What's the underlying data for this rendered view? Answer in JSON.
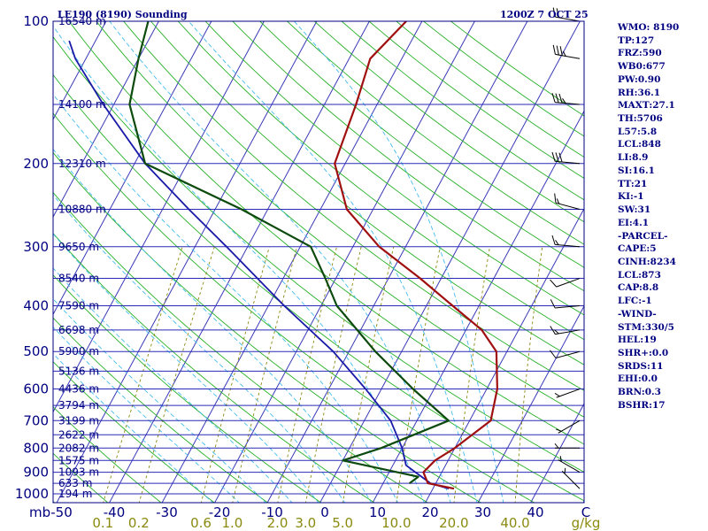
{
  "header": {
    "title": "LE190 (8190) Sounding",
    "time": "1200Z  7 OCT 25"
  },
  "indices": [
    "WMO: 8190",
    "TP:127",
    "FRZ:590",
    "WB0:677",
    "PW:0.90",
    "RH:36.1",
    "MAXT:27.1",
    "TH:5706",
    "L57:5.8",
    "LCL:848",
    "LI:8.9",
    "SI:16.1",
    "TT:21",
    "KI:-1",
    "SW:31",
    "EI:4.1",
    "-PARCEL-",
    "CAPE:5",
    "CINH:8234",
    "LCL:873",
    "CAP:8.8",
    "LFC:-1",
    "-WIND-",
    "STM:330/5",
    "HEL:19",
    "SHR+:0.0",
    "SRDS:11",
    "EHI:0.0",
    "BRN:0.3",
    "BSHR:17"
  ],
  "colors": {
    "isobar": "#2a2ab8",
    "isotherm": "#3a3ab8",
    "dry_adiabat": "#28b028",
    "moist_adiabat": "#44bbee",
    "mixing_ratio": "#8a8a10",
    "temperature": "#a01010",
    "dewpoint": "#0d4a0d",
    "parcel": "#1a1aa8",
    "wind_barb": "#000000",
    "text": "#000080"
  },
  "chart_data": {
    "type": "skew-t log-p",
    "title": "LE190 (8190) Sounding",
    "time": "1200Z  7 OCT 25",
    "xlabel": "C",
    "mixing_unit": "g/kg",
    "y_unit_label": "mb",
    "xlim": [
      -50,
      50
    ],
    "ylim": [
      1000,
      100
    ],
    "pressure_ticks": [
      100,
      200,
      300,
      400,
      500,
      600,
      700,
      800,
      900,
      1000
    ],
    "temperature_ticks": [
      -50,
      -40,
      -30,
      -20,
      -10,
      0,
      10,
      20,
      30,
      40
    ],
    "mixing_ratio_labels": [
      "0.1",
      "0.2",
      "0.6",
      "1.0",
      "2.0",
      "3.0",
      "5.0",
      "10.0",
      "20.0",
      "40.0"
    ],
    "mixing_ratio_values": [
      0.1,
      0.2,
      0.6,
      1.0,
      2.0,
      3.0,
      5.0,
      10.0,
      20.0,
      40.0
    ],
    "height_labels": [
      {
        "p": 100,
        "label": "16540 m"
      },
      {
        "p": 150,
        "label": "14100 m"
      },
      {
        "p": 200,
        "label": "12310 m"
      },
      {
        "p": 250,
        "label": "10880 m"
      },
      {
        "p": 300,
        "label": "9650 m"
      },
      {
        "p": 350,
        "label": "8540 m"
      },
      {
        "p": 400,
        "label": "7590 m"
      },
      {
        "p": 450,
        "label": "6698 m"
      },
      {
        "p": 500,
        "label": "5900 m"
      },
      {
        "p": 550,
        "label": "5136 m"
      },
      {
        "p": 600,
        "label": "4436 m"
      },
      {
        "p": 650,
        "label": "3794 m"
      },
      {
        "p": 700,
        "label": "3199 m"
      },
      {
        "p": 750,
        "label": "2622 m"
      },
      {
        "p": 800,
        "label": "2082 m"
      },
      {
        "p": 850,
        "label": "1575 m"
      },
      {
        "p": 900,
        "label": "1093 m"
      },
      {
        "p": 950,
        "label": "633 m"
      },
      {
        "p": 1000,
        "label": "194 m"
      }
    ],
    "temperature": [
      {
        "p": 975,
        "t": 24
      },
      {
        "p": 950,
        "t": 18.5
      },
      {
        "p": 900,
        "t": 16.5
      },
      {
        "p": 850,
        "t": 17.5
      },
      {
        "p": 800,
        "t": 20
      },
      {
        "p": 700,
        "t": 24
      },
      {
        "p": 600,
        "t": 22
      },
      {
        "p": 500,
        "t": 18
      },
      {
        "p": 450,
        "t": 13
      },
      {
        "p": 400,
        "t": 5
      },
      {
        "p": 350,
        "t": -4
      },
      {
        "p": 300,
        "t": -15
      },
      {
        "p": 250,
        "t": -25
      },
      {
        "p": 200,
        "t": -32
      },
      {
        "p": 150,
        "t": -34
      },
      {
        "p": 120,
        "t": -36
      },
      {
        "p": 100,
        "t": -33
      }
    ],
    "dewpoint": [
      {
        "p": 950,
        "t": 15
      },
      {
        "p": 920,
        "t": 16
      },
      {
        "p": 850,
        "t": 0
      },
      {
        "p": 800,
        "t": 6
      },
      {
        "p": 700,
        "t": 16
      },
      {
        "p": 600,
        "t": 6
      },
      {
        "p": 500,
        "t": -5
      },
      {
        "p": 400,
        "t": -17
      },
      {
        "p": 350,
        "t": -22
      },
      {
        "p": 300,
        "t": -28
      },
      {
        "p": 250,
        "t": -45
      },
      {
        "p": 200,
        "t": -68
      },
      {
        "p": 150,
        "t": -77
      },
      {
        "p": 120,
        "t": -80
      },
      {
        "p": 100,
        "t": -82
      }
    ],
    "parcel": [
      {
        "p": 975,
        "t": 23
      },
      {
        "p": 950,
        "t": 19
      },
      {
        "p": 900,
        "t": 15
      },
      {
        "p": 870,
        "t": 12.5
      },
      {
        "p": 800,
        "t": 10
      },
      {
        "p": 700,
        "t": 5
      },
      {
        "p": 600,
        "t": -3
      },
      {
        "p": 500,
        "t": -13
      },
      {
        "p": 400,
        "t": -27
      },
      {
        "p": 300,
        "t": -44
      },
      {
        "p": 250,
        "t": -55
      },
      {
        "p": 200,
        "t": -68
      },
      {
        "p": 150,
        "t": -82
      },
      {
        "p": 120,
        "t": -92
      },
      {
        "p": 110,
        "t": -95
      }
    ],
    "wind": [
      {
        "p": 975,
        "dir": 315,
        "spd": 5
      },
      {
        "p": 900,
        "dir": 300,
        "spd": 5
      },
      {
        "p": 800,
        "dir": 270,
        "spd": 5
      },
      {
        "p": 700,
        "dir": 240,
        "spd": 5
      },
      {
        "p": 600,
        "dir": 250,
        "spd": 5
      },
      {
        "p": 500,
        "dir": 255,
        "spd": 10
      },
      {
        "p": 450,
        "dir": 260,
        "spd": 15
      },
      {
        "p": 400,
        "dir": 265,
        "spd": 10
      },
      {
        "p": 350,
        "dir": 250,
        "spd": 10
      },
      {
        "p": 300,
        "dir": 275,
        "spd": 15
      },
      {
        "p": 250,
        "dir": 285,
        "spd": 15
      },
      {
        "p": 200,
        "dir": 275,
        "spd": 30
      },
      {
        "p": 150,
        "dir": 275,
        "spd": 35
      },
      {
        "p": 120,
        "dir": 280,
        "spd": 35
      },
      {
        "p": 100,
        "dir": 280,
        "spd": 20
      }
    ]
  }
}
